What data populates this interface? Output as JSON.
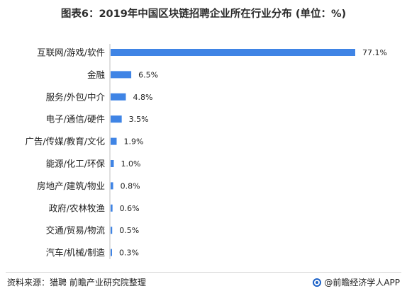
{
  "header": {
    "title": "图表6：2019年中国区块链招聘企业所在行业分布 (单位：%)"
  },
  "footer": {
    "source": "资料来源：猎聘 前瞻产业研究院整理",
    "brand": "@前瞻经济学人APP"
  },
  "colors": {
    "bar": "#3f84e5"
  },
  "chart_data": {
    "type": "bar",
    "orientation": "horizontal",
    "title": "图表6：2019年中国区块链招聘企业所在行业分布 (单位：%)",
    "categories": [
      "互联网/游戏/软件",
      "金融",
      "服务/外包/中介",
      "电子/通信/硬件",
      "广告/传媒/教育/文化",
      "能源/化工/环保",
      "房地产/建筑/物业",
      "政府/农林牧渔",
      "交通/贸易/物流",
      "汽车/机械/制造"
    ],
    "values": [
      77.1,
      6.5,
      4.8,
      3.5,
      1.9,
      1.0,
      0.8,
      0.6,
      0.5,
      0.3
    ],
    "value_labels": [
      "77.1%",
      "6.5%",
      "4.8%",
      "3.5%",
      "1.9%",
      "1.0%",
      "0.8%",
      "0.6%",
      "0.5%",
      "0.3%"
    ],
    "xlim": [
      0,
      77.1
    ],
    "grid": false,
    "legend": "none"
  }
}
